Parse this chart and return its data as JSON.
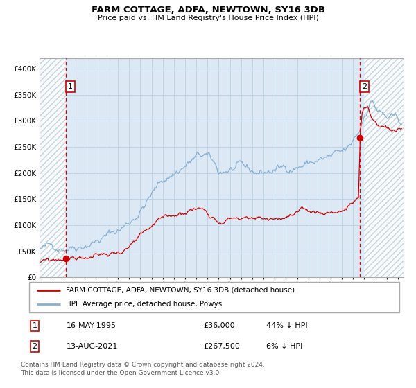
{
  "title": "FARM COTTAGE, ADFA, NEWTOWN, SY16 3DB",
  "subtitle": "Price paid vs. HM Land Registry's House Price Index (HPI)",
  "legend_line1": "FARM COTTAGE, ADFA, NEWTOWN, SY16 3DB (detached house)",
  "legend_line2": "HPI: Average price, detached house, Powys",
  "annotation1_date": "16-MAY-1995",
  "annotation1_price": "£36,000",
  "annotation1_hpi": "44% ↓ HPI",
  "annotation1_year": 1995.37,
  "annotation1_value": 36000,
  "annotation2_date": "13-AUG-2021",
  "annotation2_price": "£267,500",
  "annotation2_hpi": "6% ↓ HPI",
  "annotation2_year": 2021.62,
  "annotation2_value": 267500,
  "footer": "Contains HM Land Registry data © Crown copyright and database right 2024.\nThis data is licensed under the Open Government Licence v3.0.",
  "hpi_color": "#85afd4",
  "property_color": "#cc0000",
  "dot_color": "#cc0000",
  "grid_color": "#c0d4e8",
  "plot_bg": "#dce8f4",
  "hatch_color": "#b8ccd8",
  "ylim": [
    0,
    420000
  ],
  "ytick_step": 50000,
  "xmin": 1993.0,
  "xmax": 2025.5,
  "hatch_left_end": 1995.37,
  "hatch_right_start": 2022.0
}
